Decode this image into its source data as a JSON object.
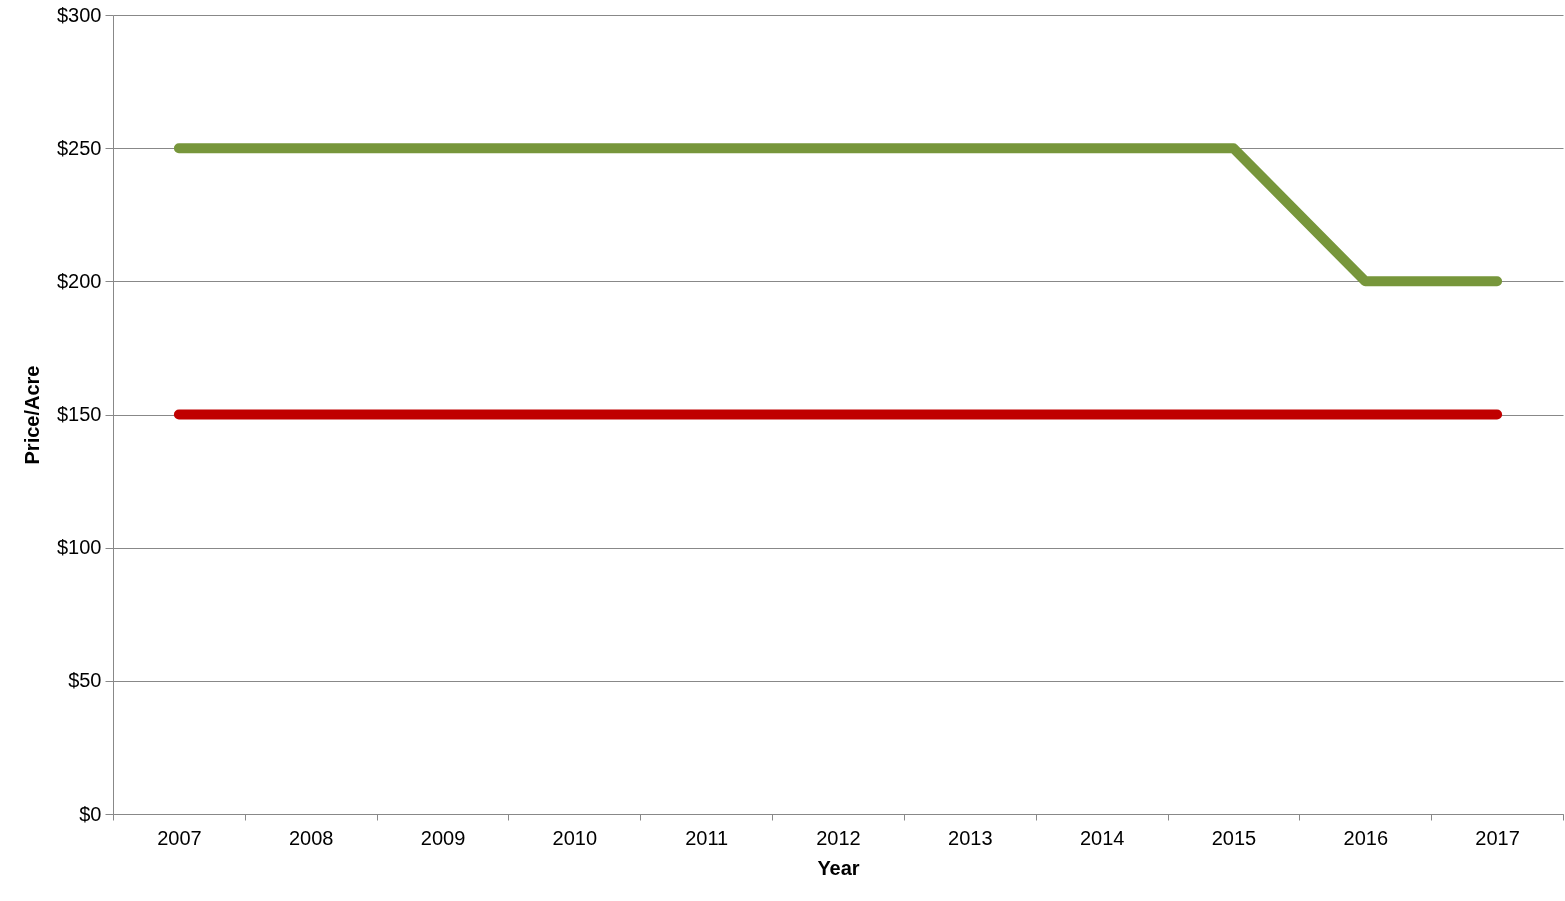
{
  "chart_data": {
    "type": "line",
    "xlabel": "Year",
    "ylabel": "Price/Acre",
    "categories": [
      "2007",
      "2008",
      "2009",
      "2010",
      "2011",
      "2012",
      "2013",
      "2014",
      "2015",
      "2016",
      "2017"
    ],
    "series": [
      {
        "color": "#77963b",
        "values": [
          250,
          250,
          250,
          250,
          250,
          250,
          250,
          250,
          250,
          200,
          200
        ]
      },
      {
        "color": "#c00000",
        "values": [
          150,
          150,
          150,
          150,
          150,
          150,
          150,
          150,
          150,
          150,
          150
        ]
      }
    ],
    "ylim": [
      0,
      300
    ],
    "yticks": [
      {
        "value": 0,
        "label": "$0"
      },
      {
        "value": 50,
        "label": "$50"
      },
      {
        "value": 100,
        "label": "$100"
      },
      {
        "value": 150,
        "label": "$150"
      },
      {
        "value": 200,
        "label": "$200"
      },
      {
        "value": 250,
        "label": "$250"
      },
      {
        "value": 300,
        "label": "$300"
      }
    ],
    "grid": "y"
  }
}
